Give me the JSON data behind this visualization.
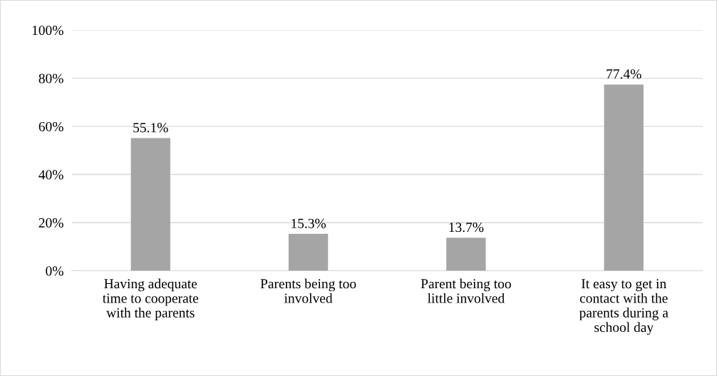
{
  "chart_data": {
    "type": "bar",
    "categories": [
      "Having adequate\ntime to cooperate\nwith the parents",
      "Parents being too\ninvolved",
      "Parent being too\nlittle involved",
      "It easy to get in\ncontact with the\nparents during a\nschool day"
    ],
    "values": [
      55.1,
      15.3,
      13.7,
      77.4
    ],
    "value_labels": [
      "55.1%",
      "15.3%",
      "13.7%",
      "77.4%"
    ],
    "color": "#a5a5a5",
    "ylim": [
      0,
      100
    ],
    "yticks": [
      {
        "value": 0,
        "label": "0%"
      },
      {
        "value": 20,
        "label": "20%"
      },
      {
        "value": 40,
        "label": "40%"
      },
      {
        "value": 60,
        "label": "60%"
      },
      {
        "value": 80,
        "label": "80%"
      },
      {
        "value": 100,
        "label": "100%"
      }
    ],
    "grid": "y",
    "legend": false
  }
}
